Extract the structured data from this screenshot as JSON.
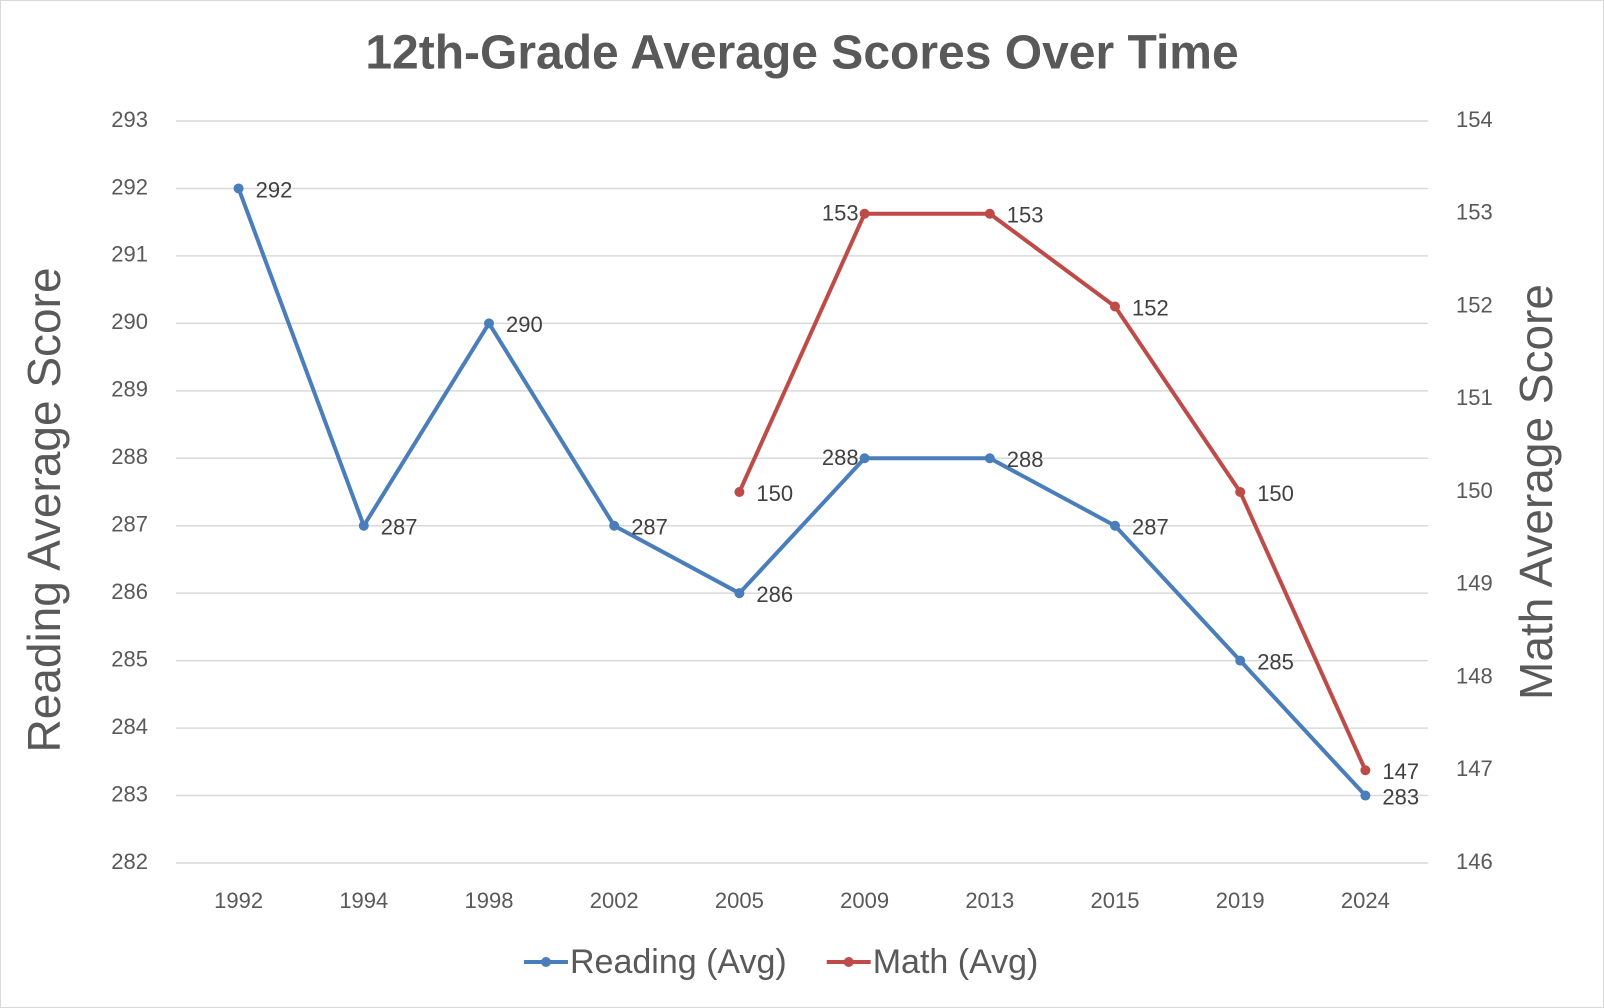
{
  "chart_data": {
    "type": "line",
    "title": "12th-Grade Average Scores Over Time",
    "categories": [
      "1992",
      "1994",
      "1998",
      "2002",
      "2005",
      "2009",
      "2013",
      "2015",
      "2019",
      "2024"
    ],
    "series": [
      {
        "name": "Reading (Avg)",
        "color": "#4a7ebb",
        "values": [
          292,
          287,
          290,
          287,
          286,
          288,
          288,
          287,
          285,
          283
        ]
      },
      {
        "name": "Math (Avg)",
        "color": "#be4b48",
        "axis": "y2",
        "values": [
          null,
          null,
          null,
          null,
          150,
          153,
          153,
          152,
          150,
          147
        ]
      }
    ],
    "y_label": "Reading Average Score",
    "y2_label": "Math Average Score",
    "ylim": [
      282,
      293
    ],
    "yticks": [
      282,
      283,
      284,
      285,
      286,
      287,
      288,
      289,
      290,
      291,
      292,
      293
    ],
    "y2lim": [
      146,
      154
    ],
    "y2ticks": [
      146,
      147,
      148,
      149,
      150,
      151,
      152,
      153,
      154
    ],
    "grid": true,
    "legend": "bottom"
  }
}
